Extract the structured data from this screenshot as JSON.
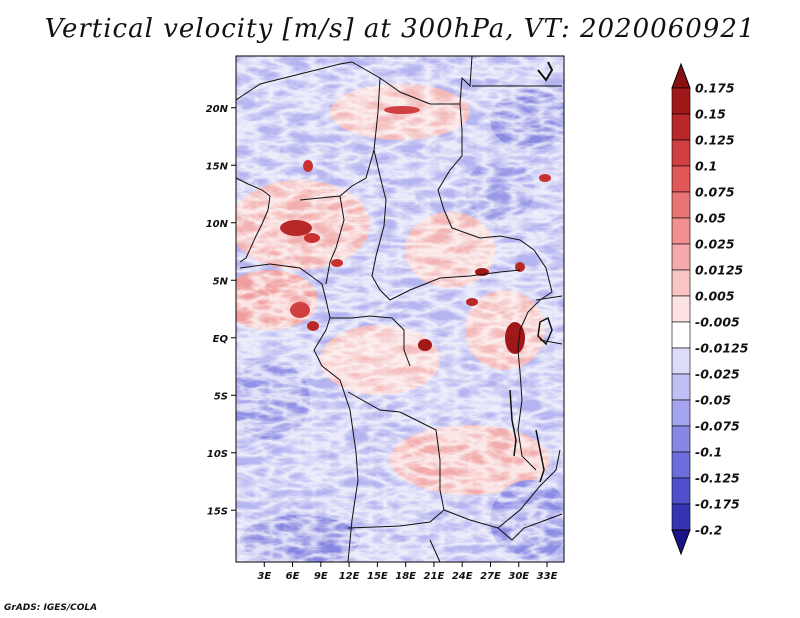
{
  "title": "Vertical velocity [m/s] at 300hPa, VT: 2020060921",
  "credit": "GrADS: IGES/COLA",
  "map": {
    "variable": "Vertical velocity",
    "units": "m/s",
    "level": "300hPa",
    "valid_time": "2020060921",
    "lat_range": [
      -19.5,
      24.5
    ],
    "lon_range": [
      0,
      34.8
    ],
    "lat_ticks": [
      {
        "value": 20,
        "label": "20N"
      },
      {
        "value": 15,
        "label": "15N"
      },
      {
        "value": 10,
        "label": "10N"
      },
      {
        "value": 5,
        "label": "5N"
      },
      {
        "value": 0,
        "label": "EQ"
      },
      {
        "value": -5,
        "label": "5S"
      },
      {
        "value": -10,
        "label": "10S"
      },
      {
        "value": -15,
        "label": "15S"
      }
    ],
    "lon_ticks": [
      {
        "value": 3,
        "label": "3E"
      },
      {
        "value": 6,
        "label": "6E"
      },
      {
        "value": 9,
        "label": "9E"
      },
      {
        "value": 12,
        "label": "12E"
      },
      {
        "value": 15,
        "label": "15E"
      },
      {
        "value": 18,
        "label": "18E"
      },
      {
        "value": 21,
        "label": "21E"
      },
      {
        "value": 24,
        "label": "24E"
      },
      {
        "value": 27,
        "label": "27E"
      },
      {
        "value": 30,
        "label": "30E"
      },
      {
        "value": 33,
        "label": "33E"
      }
    ]
  },
  "colorbar": {
    "levels": [
      {
        "label": "0.175",
        "color": "#a01818"
      },
      {
        "label": "0.15",
        "color": "#b82828"
      },
      {
        "label": "0.125",
        "color": "#d04040"
      },
      {
        "label": "0.1",
        "color": "#e05858"
      },
      {
        "label": "0.075",
        "color": "#e87474"
      },
      {
        "label": "0.05",
        "color": "#f09090"
      },
      {
        "label": "0.025",
        "color": "#f4aaaa"
      },
      {
        "label": "0.0125",
        "color": "#f8c4c4"
      },
      {
        "label": "0.005",
        "color": "#fde2e2"
      },
      {
        "label": "-0.005",
        "color": "#ffffff"
      },
      {
        "label": "-0.0125",
        "color": "#dcdcfa"
      },
      {
        "label": "-0.025",
        "color": "#c0c0f4"
      },
      {
        "label": "-0.05",
        "color": "#a4a4ee"
      },
      {
        "label": "-0.075",
        "color": "#8888e4"
      },
      {
        "label": "-0.1",
        "color": "#6c6cdc"
      },
      {
        "label": "-0.125",
        "color": "#5050cc"
      },
      {
        "label": "-0.175",
        "color": "#3434b4"
      },
      {
        "label": "-0.2",
        "color": "#20209c"
      }
    ],
    "top_arrow_color": "#881010",
    "bottom_arrow_color": "#1a1488"
  },
  "colors": {
    "ascent_strong": "#a01818",
    "ascent_weak": "#f4aaaa",
    "neutral": "#ffffff",
    "descent_weak": "#c0c0f4",
    "descent_strong": "#5050cc"
  }
}
